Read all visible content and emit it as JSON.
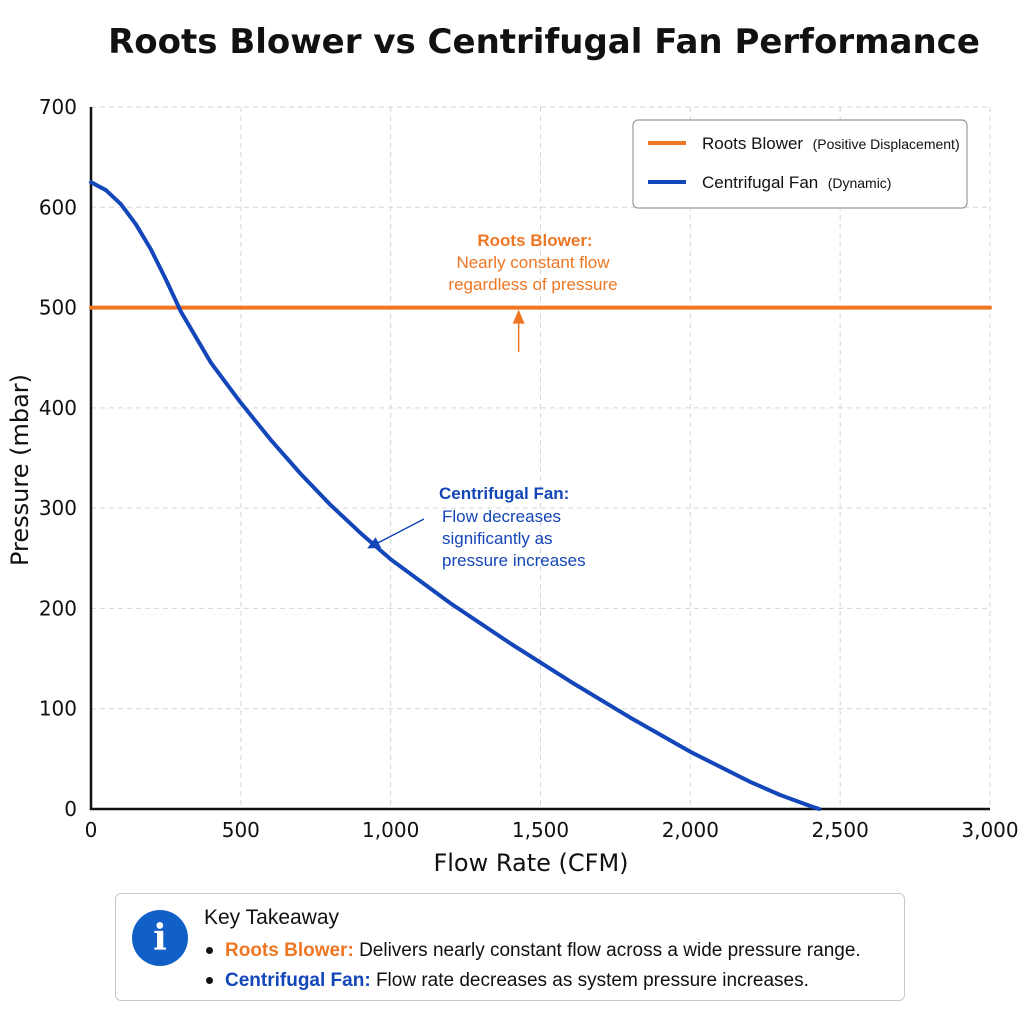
{
  "colors": {
    "roots": "#ef7622",
    "centrifugal": "#1346b8",
    "grid": "#d6d6d6",
    "info": "#1160c8"
  },
  "chart_data": {
    "type": "line",
    "title": "Roots Blower vs Centrifugal Fan Performance",
    "xlabel": "Flow Rate (CFM)",
    "ylabel": "Pressure (mbar)",
    "xlim": [
      0,
      3000
    ],
    "ylim": [
      0,
      700
    ],
    "x_ticks": [
      0,
      500,
      1000,
      1500,
      2000,
      2500,
      3000
    ],
    "x_tick_labels": [
      "0",
      "500",
      "1,000",
      "1,500",
      "2,000",
      "2,500",
      "3,000"
    ],
    "y_ticks": [
      0,
      100,
      200,
      300,
      400,
      500,
      600,
      700
    ],
    "y_tick_labels": [
      "0",
      "100",
      "200",
      "300",
      "400",
      "500",
      "600",
      "700"
    ],
    "grid": true,
    "legend_position": "top-right",
    "series": [
      {
        "name": "Roots Blower",
        "legend_detail": "(Positive Displacement)",
        "color": "#ef7622",
        "points": [
          [
            0,
            500
          ],
          [
            3000,
            500
          ]
        ]
      },
      {
        "name": "Centrifugal Fan",
        "legend_detail": "(Dynamic)",
        "color": "#1346b8",
        "points": [
          [
            0,
            625
          ],
          [
            50,
            617
          ],
          [
            100,
            603
          ],
          [
            150,
            583
          ],
          [
            200,
            558
          ],
          [
            250,
            528
          ],
          [
            300,
            496
          ],
          [
            400,
            445
          ],
          [
            500,
            405
          ],
          [
            600,
            368
          ],
          [
            700,
            334
          ],
          [
            800,
            303
          ],
          [
            900,
            275
          ],
          [
            1000,
            249
          ],
          [
            1200,
            205
          ],
          [
            1400,
            165
          ],
          [
            1600,
            127
          ],
          [
            1800,
            91
          ],
          [
            2000,
            57
          ],
          [
            2200,
            27
          ],
          [
            2300,
            14
          ],
          [
            2400,
            3
          ],
          [
            2430,
            0
          ]
        ]
      }
    ],
    "annotations": [
      {
        "id": "roots",
        "head": "Roots Blower:",
        "lines": [
          "Nearly constant flow",
          "regardless of pressure"
        ],
        "anchor": [
          1427,
          500
        ]
      },
      {
        "id": "centrifugal",
        "head": "Centrifugal Fan:",
        "lines": [
          "Flow decreases",
          "significantly as",
          "pressure increases"
        ],
        "anchor": [
          910,
          258
        ]
      }
    ]
  },
  "takeaway": {
    "title": "Key Takeaway",
    "items": [
      {
        "label": "Roots Blower:",
        "text": "Delivers nearly constant flow across a wide pressure range."
      },
      {
        "label": "Centrifugal Fan:",
        "text": "Flow rate decreases as system pressure increases."
      }
    ]
  }
}
